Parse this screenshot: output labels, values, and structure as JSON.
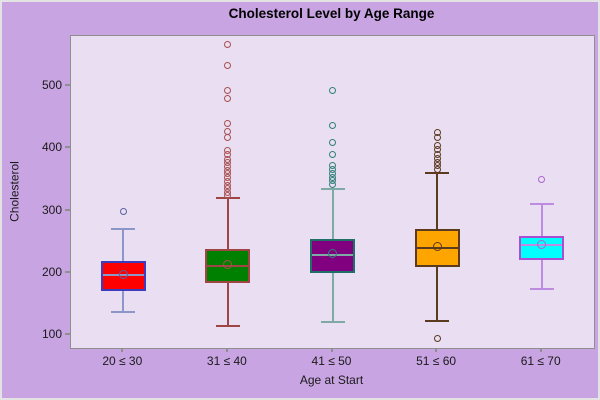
{
  "page": {
    "background": "#C8A4E2",
    "frame_color": "#C4C4C4"
  },
  "chart_data": {
    "type": "boxplot",
    "title": "Cholesterol Level by Age Range",
    "xlabel": "Age at Start",
    "ylabel": "Cholesterol",
    "ylim": [
      79,
      581
    ],
    "yticks": [
      100,
      200,
      300,
      400,
      500
    ],
    "grid": false,
    "legend": false,
    "plot_background": "#EADEF2",
    "plot_border_color": "#8F8F8F",
    "tick_mark_color": "#8F8F8F",
    "text_color": "#1A1A1A",
    "categories": [
      "20 ≤ 30",
      "31 ≤ 40",
      "41 ≤ 50",
      "51 ≤ 60",
      "61 ≤ 70"
    ],
    "series": [
      {
        "category": "20 ≤ 30",
        "whisker_low": 137,
        "q1": 170,
        "median": 196,
        "mean": 197,
        "q3": 219,
        "whisker_high": 270,
        "outliers": [
          298
        ],
        "colors": {
          "fill": "#FF0000",
          "edge": "#3C3CC0",
          "whisker": "#8C96C8",
          "outlier": "#5A64A0"
        }
      },
      {
        "category": "31 ≤ 40",
        "whisker_low": 114,
        "q1": 184,
        "median": 211,
        "mean": 214,
        "q3": 238,
        "whisker_high": 321,
        "outliers": [
          568,
          534,
          493,
          480,
          441,
          428,
          417,
          396,
          390,
          383,
          377,
          371,
          365,
          359,
          353,
          347,
          341,
          335,
          329,
          324
        ],
        "colors": {
          "fill": "#008000",
          "edge": "#A04444",
          "whisker": "#A04444",
          "outlier": "#A85050"
        }
      },
      {
        "category": "41 ≤ 50",
        "whisker_low": 121,
        "q1": 200,
        "median": 229,
        "mean": 231,
        "q3": 254,
        "whisker_high": 335,
        "outliers": [
          493,
          437,
          409,
          390,
          372,
          366,
          360,
          354,
          348,
          342
        ],
        "colors": {
          "fill": "#800080",
          "edge": "#1F6E68",
          "whisker": "#7FA9A5",
          "outlier": "#2F8078"
        }
      },
      {
        "category": "51 ≤ 60",
        "whisker_low": 123,
        "q1": 210,
        "median": 240,
        "mean": 243,
        "q3": 270,
        "whisker_high": 361,
        "outliers": [
          425,
          417,
          405,
          398,
          391,
          384,
          378,
          372,
          367,
          95
        ],
        "colors": {
          "fill": "#FFA500",
          "edge": "#5C3A1E",
          "whisker": "#5C3A1E",
          "outlier": "#5C3A1E"
        }
      },
      {
        "category": "61 ≤ 70",
        "whisker_low": 174,
        "q1": 220,
        "median": 244,
        "mean": 245,
        "q3": 260,
        "whisker_high": 311,
        "outliers": [
          350
        ],
        "colors": {
          "fill": "#00FFFF",
          "edge": "#A94FD2",
          "whisker": "#BD8CE0",
          "outlier": "#AA66CC"
        }
      }
    ]
  }
}
